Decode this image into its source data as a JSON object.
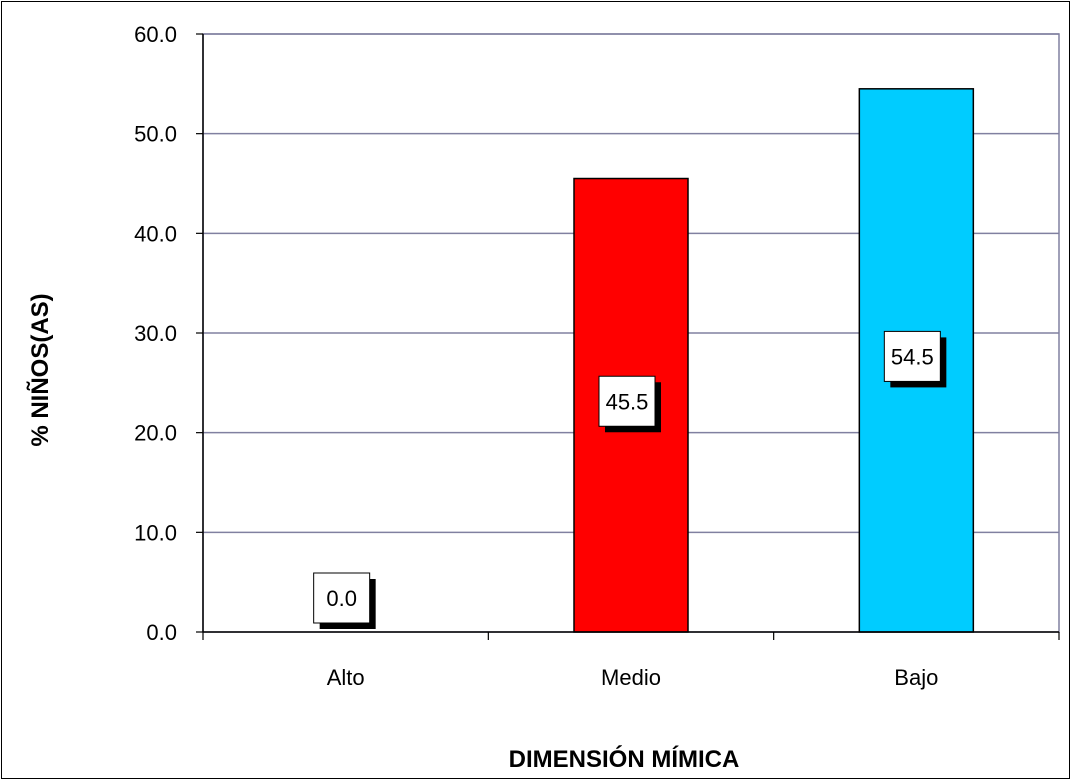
{
  "chart_data": {
    "type": "bar",
    "categories": [
      "Alto",
      "Medio",
      "Bajo"
    ],
    "values": [
      0.0,
      45.5,
      54.5
    ],
    "data_labels": [
      "0.0",
      "45.5",
      "54.5"
    ],
    "title": "",
    "xlabel": "DIMENSIÓN MÍMICA",
    "ylabel": "% NIÑOS(AS)",
    "ylim": [
      0,
      60
    ],
    "yticks": [
      "0.0",
      "10.0",
      "20.0",
      "30.0",
      "40.0",
      "50.0",
      "60.0"
    ],
    "grid": true,
    "bar_colors": [
      "#ff0000",
      "#ff0000",
      "#00ccff"
    ],
    "gridline_color": "#8080a0",
    "label_box_border": "#000000",
    "label_box_shadow": "#000000"
  }
}
